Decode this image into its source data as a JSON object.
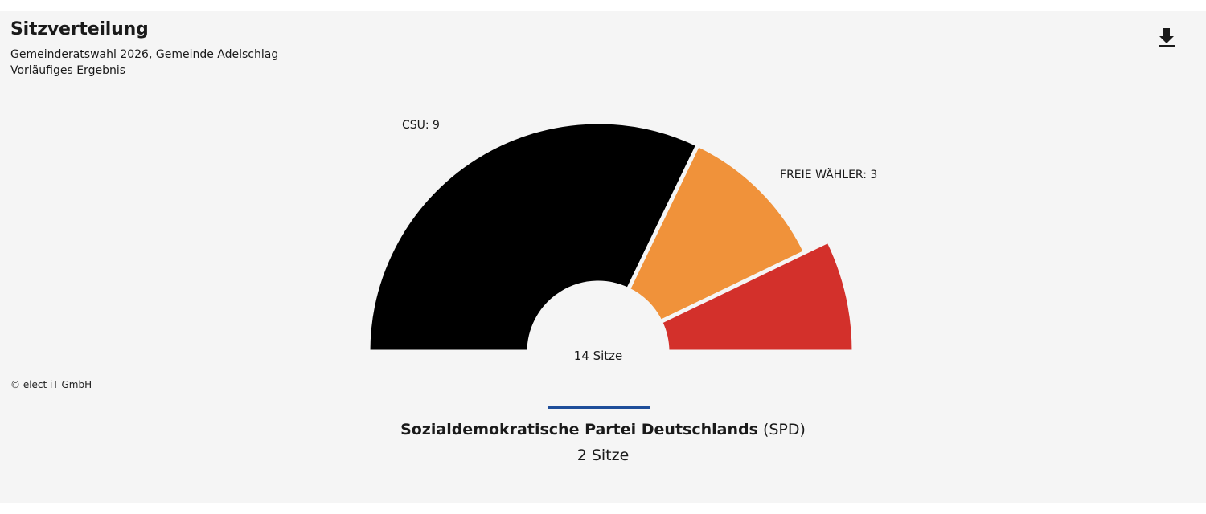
{
  "header": {
    "title": "Sitzverteilung",
    "subtitle_line1": "Gemeinderatswahl 2026, Gemeinde Adelschlag",
    "subtitle_line2": "Vorläufiges Ergebnis",
    "download_icon": "download-icon"
  },
  "credit": "© elect iT GmbH",
  "chart_data": {
    "type": "pie",
    "subtype": "half-donut",
    "total_label": "14 Sitze",
    "slices": [
      {
        "party": "CSU",
        "seats": 9,
        "label": "CSU: 9",
        "color": "#000000"
      },
      {
        "party": "FREIE WÄHLER",
        "seats": 3,
        "label": "FREIE WÄHLER: 3",
        "color": "#f0923a"
      },
      {
        "party": "SPD",
        "seats": 2,
        "label": "",
        "color": "#d3302b"
      }
    ]
  },
  "detail": {
    "party_name": "Sozialdemokratische Partei Deutschlands",
    "party_short": "(SPD)",
    "seats_text": "2 Sitze",
    "accent_color": "#1f4e9a"
  }
}
